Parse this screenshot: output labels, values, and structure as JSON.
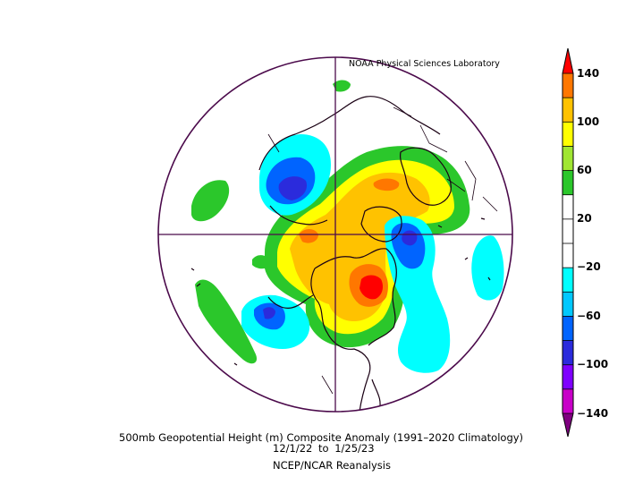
{
  "credit": "NOAA Physical Sciences Laboratory",
  "caption": {
    "line1": "500mb Geopotential Height (m) Composite Anomaly (1991–2020 Climatology)",
    "line2": "12/1/22  to 1/25/23",
    "line3": "NCEP/NCAR Reanalysis"
  },
  "colorbar": {
    "labels": [
      "140",
      "100",
      "60",
      "20",
      "−20",
      "−60",
      "−100",
      "−140"
    ],
    "colors": [
      "#ff0000",
      "#ff7700",
      "#ffc200",
      "#ffff00",
      "#a0e632",
      "#2bc72b",
      "#ffffff",
      "#ffffff",
      "#00ffff",
      "#00c8ff",
      "#0064ff",
      "#2b2bdc",
      "#7f00ff",
      "#c800c8",
      "#7f0080"
    ]
  },
  "map": {
    "projection": "north-polar-stereographic",
    "border_color": "#4b0a4b"
  }
}
